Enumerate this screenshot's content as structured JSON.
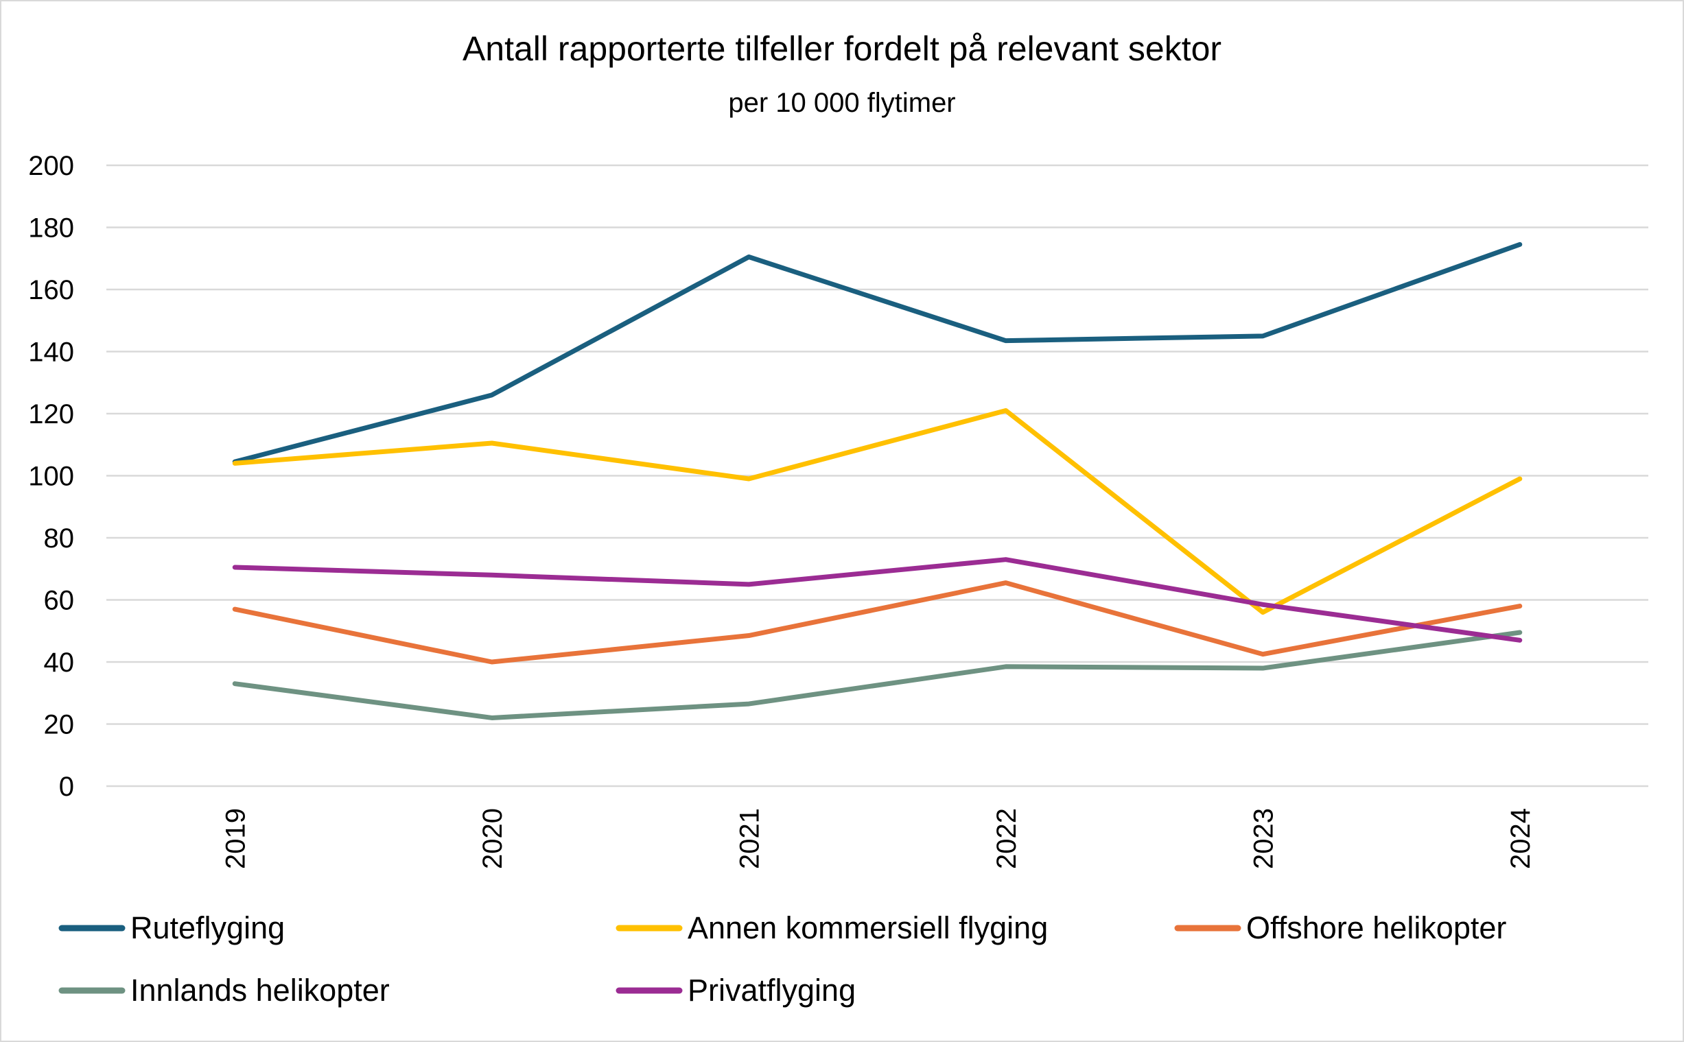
{
  "chart_data": {
    "type": "line",
    "title": "Antall rapporterte tilfeller fordelt på relevant sektor",
    "subtitle": "per 10 000 flytimer",
    "xlabel": "",
    "ylabel": "",
    "ylim": [
      0,
      200
    ],
    "y_ticks": [
      0,
      20,
      40,
      60,
      80,
      100,
      120,
      140,
      160,
      180,
      200
    ],
    "grid": true,
    "legend_position": "bottom",
    "categories": [
      "2019",
      "2020",
      "2021",
      "2022",
      "2023",
      "2024"
    ],
    "series": [
      {
        "name": "Ruteflyging",
        "color": "#1a5f7f",
        "values": [
          104.5,
          126,
          170.5,
          143.5,
          145,
          174.5
        ]
      },
      {
        "name": "Annen kommersiell flyging",
        "color": "#ffc000",
        "values": [
          104,
          110.5,
          99,
          121,
          56,
          99
        ]
      },
      {
        "name": "Offshore helikopter",
        "color": "#e8733a",
        "values": [
          57,
          40,
          48.5,
          65.5,
          42.5,
          58
        ]
      },
      {
        "name": "Innlands helikopter",
        "color": "#6e9282",
        "values": [
          33,
          22,
          26.5,
          38.5,
          38,
          49.5
        ]
      },
      {
        "name": "Privatflyging",
        "color": "#9b2c93",
        "values": [
          70.5,
          68,
          65,
          73,
          58.5,
          47
        ]
      }
    ]
  }
}
